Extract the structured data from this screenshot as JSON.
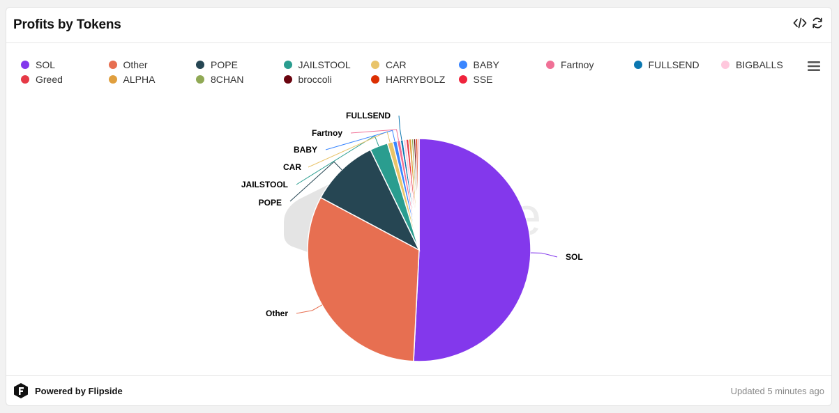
{
  "header": {
    "title": "Profits by Tokens"
  },
  "legend": [
    {
      "label": "SOL",
      "color": "#8338ec"
    },
    {
      "label": "Other",
      "color": "#e76f51"
    },
    {
      "label": "POPE",
      "color": "#264653"
    },
    {
      "label": "JAILSTOOL",
      "color": "#2a9d8f"
    },
    {
      "label": "CAR",
      "color": "#e9c46a"
    },
    {
      "label": "BABY",
      "color": "#3a86ff"
    },
    {
      "label": "Fartnoy",
      "color": "#f07096"
    },
    {
      "label": "FULLSEND",
      "color": "#0b77b0"
    },
    {
      "label": "BIGBALLS",
      "color": "#ffc8dd"
    },
    {
      "label": "Greed",
      "color": "#e63946"
    },
    {
      "label": "ALPHA",
      "color": "#e09f3e"
    },
    {
      "label": "8CHAN",
      "color": "#90a955"
    },
    {
      "label": "broccoli",
      "color": "#6a040f"
    },
    {
      "label": "HARRYBOLZ",
      "color": "#dc2f02"
    },
    {
      "label": "SSE",
      "color": "#ef233c"
    }
  ],
  "chart_data": {
    "type": "pie",
    "title": "Profits by Tokens",
    "slices": [
      {
        "name": "SOL",
        "value": 50.8,
        "color": "#8338ec"
      },
      {
        "name": "Other",
        "value": 32.0,
        "color": "#e76f51"
      },
      {
        "name": "POPE",
        "value": 10.0,
        "color": "#264653"
      },
      {
        "name": "JAILSTOOL",
        "value": 2.6,
        "color": "#2a9d8f"
      },
      {
        "name": "CAR",
        "value": 0.8,
        "color": "#e9c46a"
      },
      {
        "name": "BABY",
        "value": 0.6,
        "color": "#3a86ff"
      },
      {
        "name": "Fartnoy",
        "value": 0.5,
        "color": "#f07096"
      },
      {
        "name": "FULLSEND",
        "value": 0.4,
        "color": "#0b77b0"
      },
      {
        "name": "BIGBALLS",
        "value": 0.4,
        "color": "#ffc8dd"
      },
      {
        "name": "Greed",
        "value": 0.4,
        "color": "#e63946"
      },
      {
        "name": "ALPHA",
        "value": 0.4,
        "color": "#e09f3e"
      },
      {
        "name": "8CHAN",
        "value": 0.3,
        "color": "#90a955"
      },
      {
        "name": "broccoli",
        "value": 0.3,
        "color": "#6a040f"
      },
      {
        "name": "HARRYBOLZ",
        "value": 0.3,
        "color": "#dc2f02"
      },
      {
        "name": "SSE",
        "value": 0.2,
        "color": "#ef233c"
      }
    ],
    "data_labels": [
      "SOL",
      "Other",
      "POPE",
      "JAILSTOOL",
      "CAR",
      "BABY",
      "Fartnoy",
      "FULLSEND"
    ],
    "legend_position": "top"
  },
  "footer": {
    "brand": "Powered by Flipside",
    "updated": "Updated 5 minutes ago"
  }
}
